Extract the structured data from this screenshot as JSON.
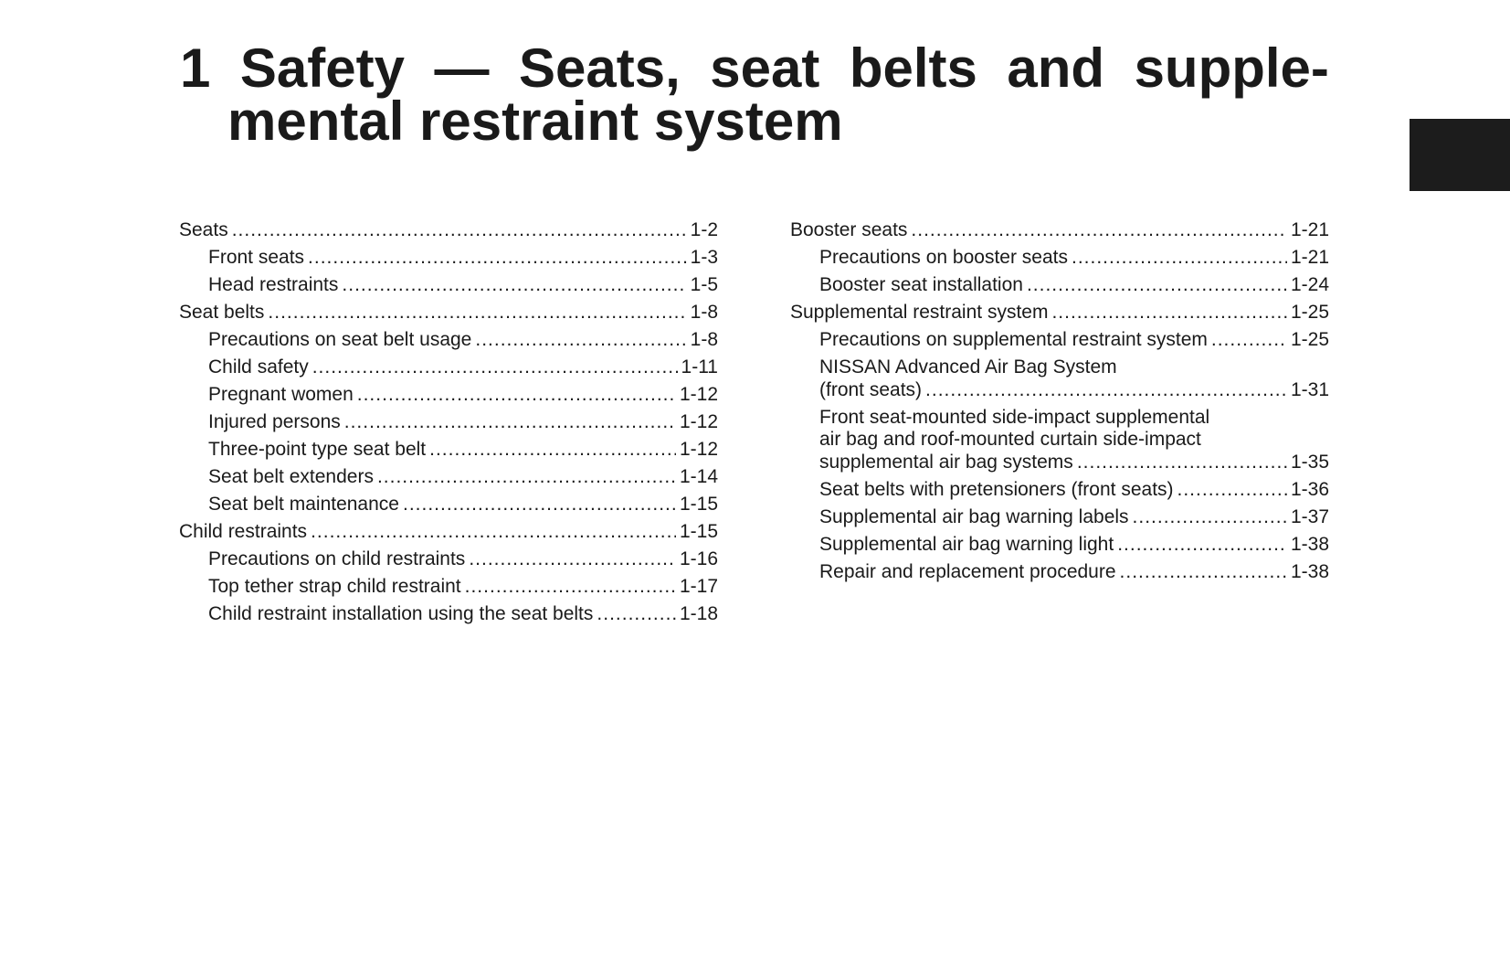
{
  "title": {
    "line1": [
      "1",
      "Safety",
      "—",
      "Seats,",
      "seat",
      "belts",
      "and",
      "supple-"
    ],
    "line2": "mental restraint system"
  },
  "toc_left": [
    {
      "lines": [],
      "label": "Seats",
      "page": "1-2",
      "level": 0
    },
    {
      "lines": [],
      "label": "Front seats",
      "page": "1-3",
      "level": 1
    },
    {
      "lines": [],
      "label": "Head restraints",
      "page": "1-5",
      "level": 1
    },
    {
      "lines": [],
      "label": "Seat belts",
      "page": "1-8",
      "level": 0
    },
    {
      "lines": [],
      "label": "Precautions on seat belt usage",
      "page": "1-8",
      "level": 1
    },
    {
      "lines": [],
      "label": "Child safety",
      "page": "1-11",
      "level": 1
    },
    {
      "lines": [],
      "label": "Pregnant women",
      "page": "1-12",
      "level": 1
    },
    {
      "lines": [],
      "label": "Injured persons",
      "page": "1-12",
      "level": 1
    },
    {
      "lines": [],
      "label": "Three-point type seat belt",
      "page": "1-12",
      "level": 1
    },
    {
      "lines": [],
      "label": "Seat belt extenders",
      "page": "1-14",
      "level": 1
    },
    {
      "lines": [],
      "label": "Seat belt maintenance",
      "page": "1-15",
      "level": 1
    },
    {
      "lines": [],
      "label": "Child restraints",
      "page": "1-15",
      "level": 0
    },
    {
      "lines": [],
      "label": "Precautions on child restraints",
      "page": "1-16",
      "level": 1
    },
    {
      "lines": [],
      "label": "Top tether strap child restraint",
      "page": "1-17",
      "level": 1
    },
    {
      "lines": [],
      "label": "Child restraint installation using the seat belts",
      "page": "1-18",
      "level": 1
    }
  ],
  "toc_right": [
    {
      "lines": [],
      "label": "Booster seats",
      "page": "1-21",
      "level": 0
    },
    {
      "lines": [],
      "label": "Precautions on booster seats",
      "page": "1-21",
      "level": 1
    },
    {
      "lines": [],
      "label": "Booster seat installation",
      "page": "1-24",
      "level": 1
    },
    {
      "lines": [],
      "label": "Supplemental restraint system",
      "page": "1-25",
      "level": 0
    },
    {
      "lines": [],
      "label": "Precautions on supplemental restraint system",
      "page": "1-25",
      "level": 1
    },
    {
      "lines": [
        "NISSAN Advanced Air Bag System"
      ],
      "label": "(front seats)",
      "page": "1-31",
      "level": 1
    },
    {
      "lines": [
        "Front seat-mounted side-impact supplemental",
        "air bag and roof-mounted curtain side-impact"
      ],
      "label": "supplemental air bag systems",
      "page": "1-35",
      "level": 1
    },
    {
      "lines": [],
      "label": "Seat belts with pretensioners (front seats)",
      "page": "1-36",
      "level": 1
    },
    {
      "lines": [],
      "label": "Supplemental air bag warning labels",
      "page": "1-37",
      "level": 1
    },
    {
      "lines": [],
      "label": "Supplemental air bag warning light",
      "page": "1-38",
      "level": 1
    },
    {
      "lines": [],
      "label": "Repair and replacement procedure",
      "page": "1-38",
      "level": 1
    }
  ]
}
